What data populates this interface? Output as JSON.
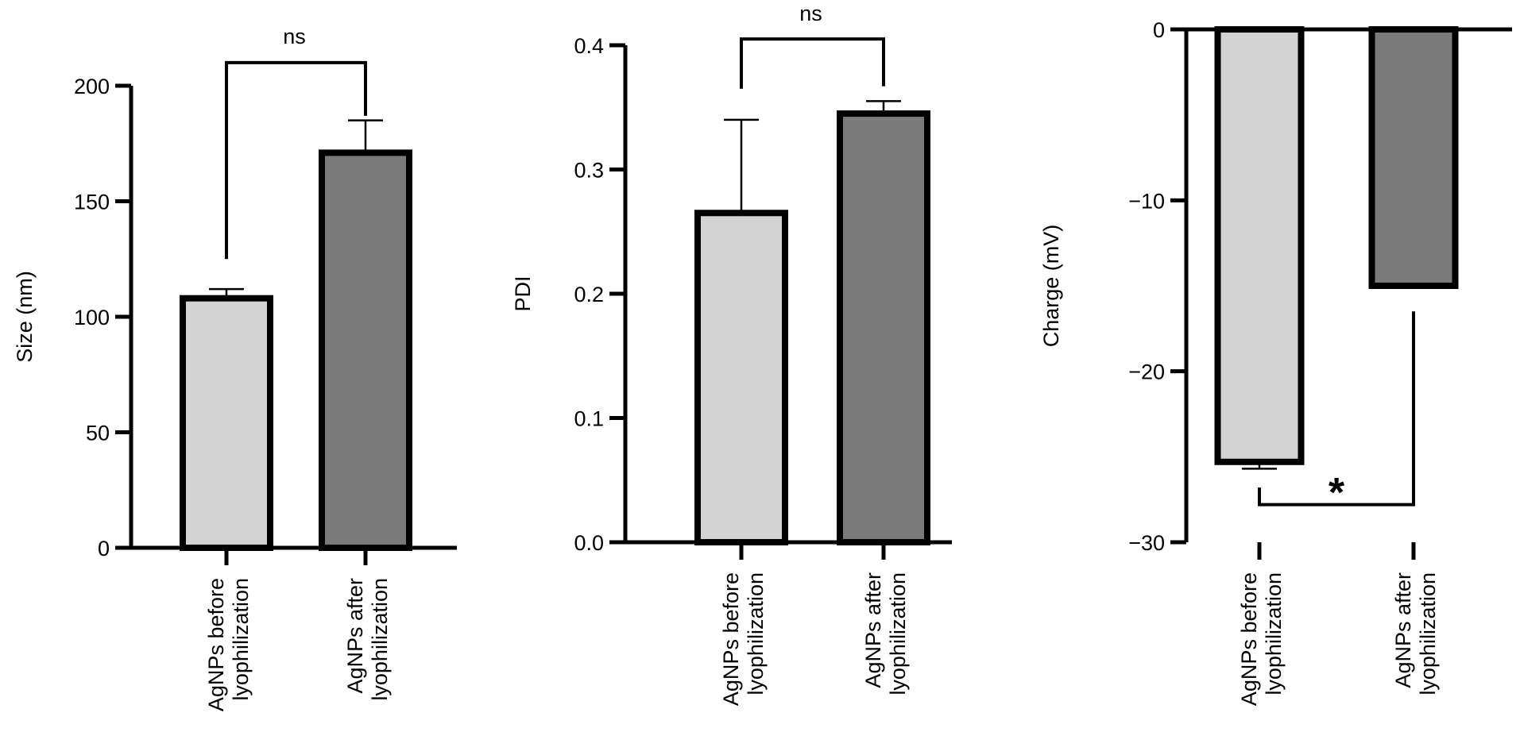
{
  "chart_data": [
    {
      "type": "bar",
      "ylabel": "Size (nm)",
      "categories": [
        "AgNPs before lyophilization",
        "AgNPs after lyophilization"
      ],
      "category_lines": [
        [
          "AgNPs before",
          "lyophilization"
        ],
        [
          "AgNPs after",
          "lyophilization"
        ]
      ],
      "values": [
        108,
        171
      ],
      "errors": [
        4,
        14
      ],
      "colors": [
        "#d3d3d3",
        "#7a7a7a"
      ],
      "ylim": [
        0,
        200
      ],
      "yticks": [
        0,
        50,
        100,
        150,
        200
      ],
      "ytick_labels": [
        "0",
        "50",
        "100",
        "150",
        "200"
      ],
      "significance": {
        "label": "ns",
        "left_start": 125,
        "right_start": 187,
        "bar_level": 210,
        "label_level": 221
      }
    },
    {
      "type": "bar",
      "ylabel": "PDI",
      "categories": [
        "AgNPs before lyophilization",
        "AgNPs after lyophilization"
      ],
      "category_lines": [
        [
          "AgNPs before",
          "lyophilization"
        ],
        [
          "AgNPs after",
          "lyophilization"
        ]
      ],
      "values": [
        0.265,
        0.345
      ],
      "errors": [
        0.075,
        0.01
      ],
      "colors": [
        "#d3d3d3",
        "#7a7a7a"
      ],
      "ylim": [
        0,
        0.4
      ],
      "yticks": [
        0,
        0.1,
        0.2,
        0.3,
        0.4
      ],
      "ytick_labels": [
        "0.0",
        "0.1",
        "0.2",
        "0.3",
        "0.4"
      ],
      "significance": {
        "label": "ns",
        "left_start": 0.365,
        "right_start": 0.367,
        "bar_level": 0.405,
        "label_level": 0.425
      }
    },
    {
      "type": "bar",
      "ylabel": "Charge (mV)",
      "categories": [
        "AgNPs before lyophilization",
        "AgNPs after lyophilization"
      ],
      "category_lines": [
        [
          "AgNPs before",
          "lyophilization"
        ],
        [
          "AgNPs after",
          "lyophilization"
        ]
      ],
      "values": [
        -25.3,
        -15
      ],
      "errors": [
        0.4,
        0
      ],
      "colors": [
        "#d3d3d3",
        "#7a7a7a"
      ],
      "ylim": [
        -30,
        0
      ],
      "yticks": [
        -30,
        -20,
        -10,
        0
      ],
      "ytick_labels": [
        "−30",
        "−20",
        "−10",
        "0"
      ],
      "significance": {
        "label": "*",
        "left_start": -26.8,
        "right_start": -16.5,
        "bar_level": -27.8,
        "label_level": -26.6
      }
    }
  ]
}
